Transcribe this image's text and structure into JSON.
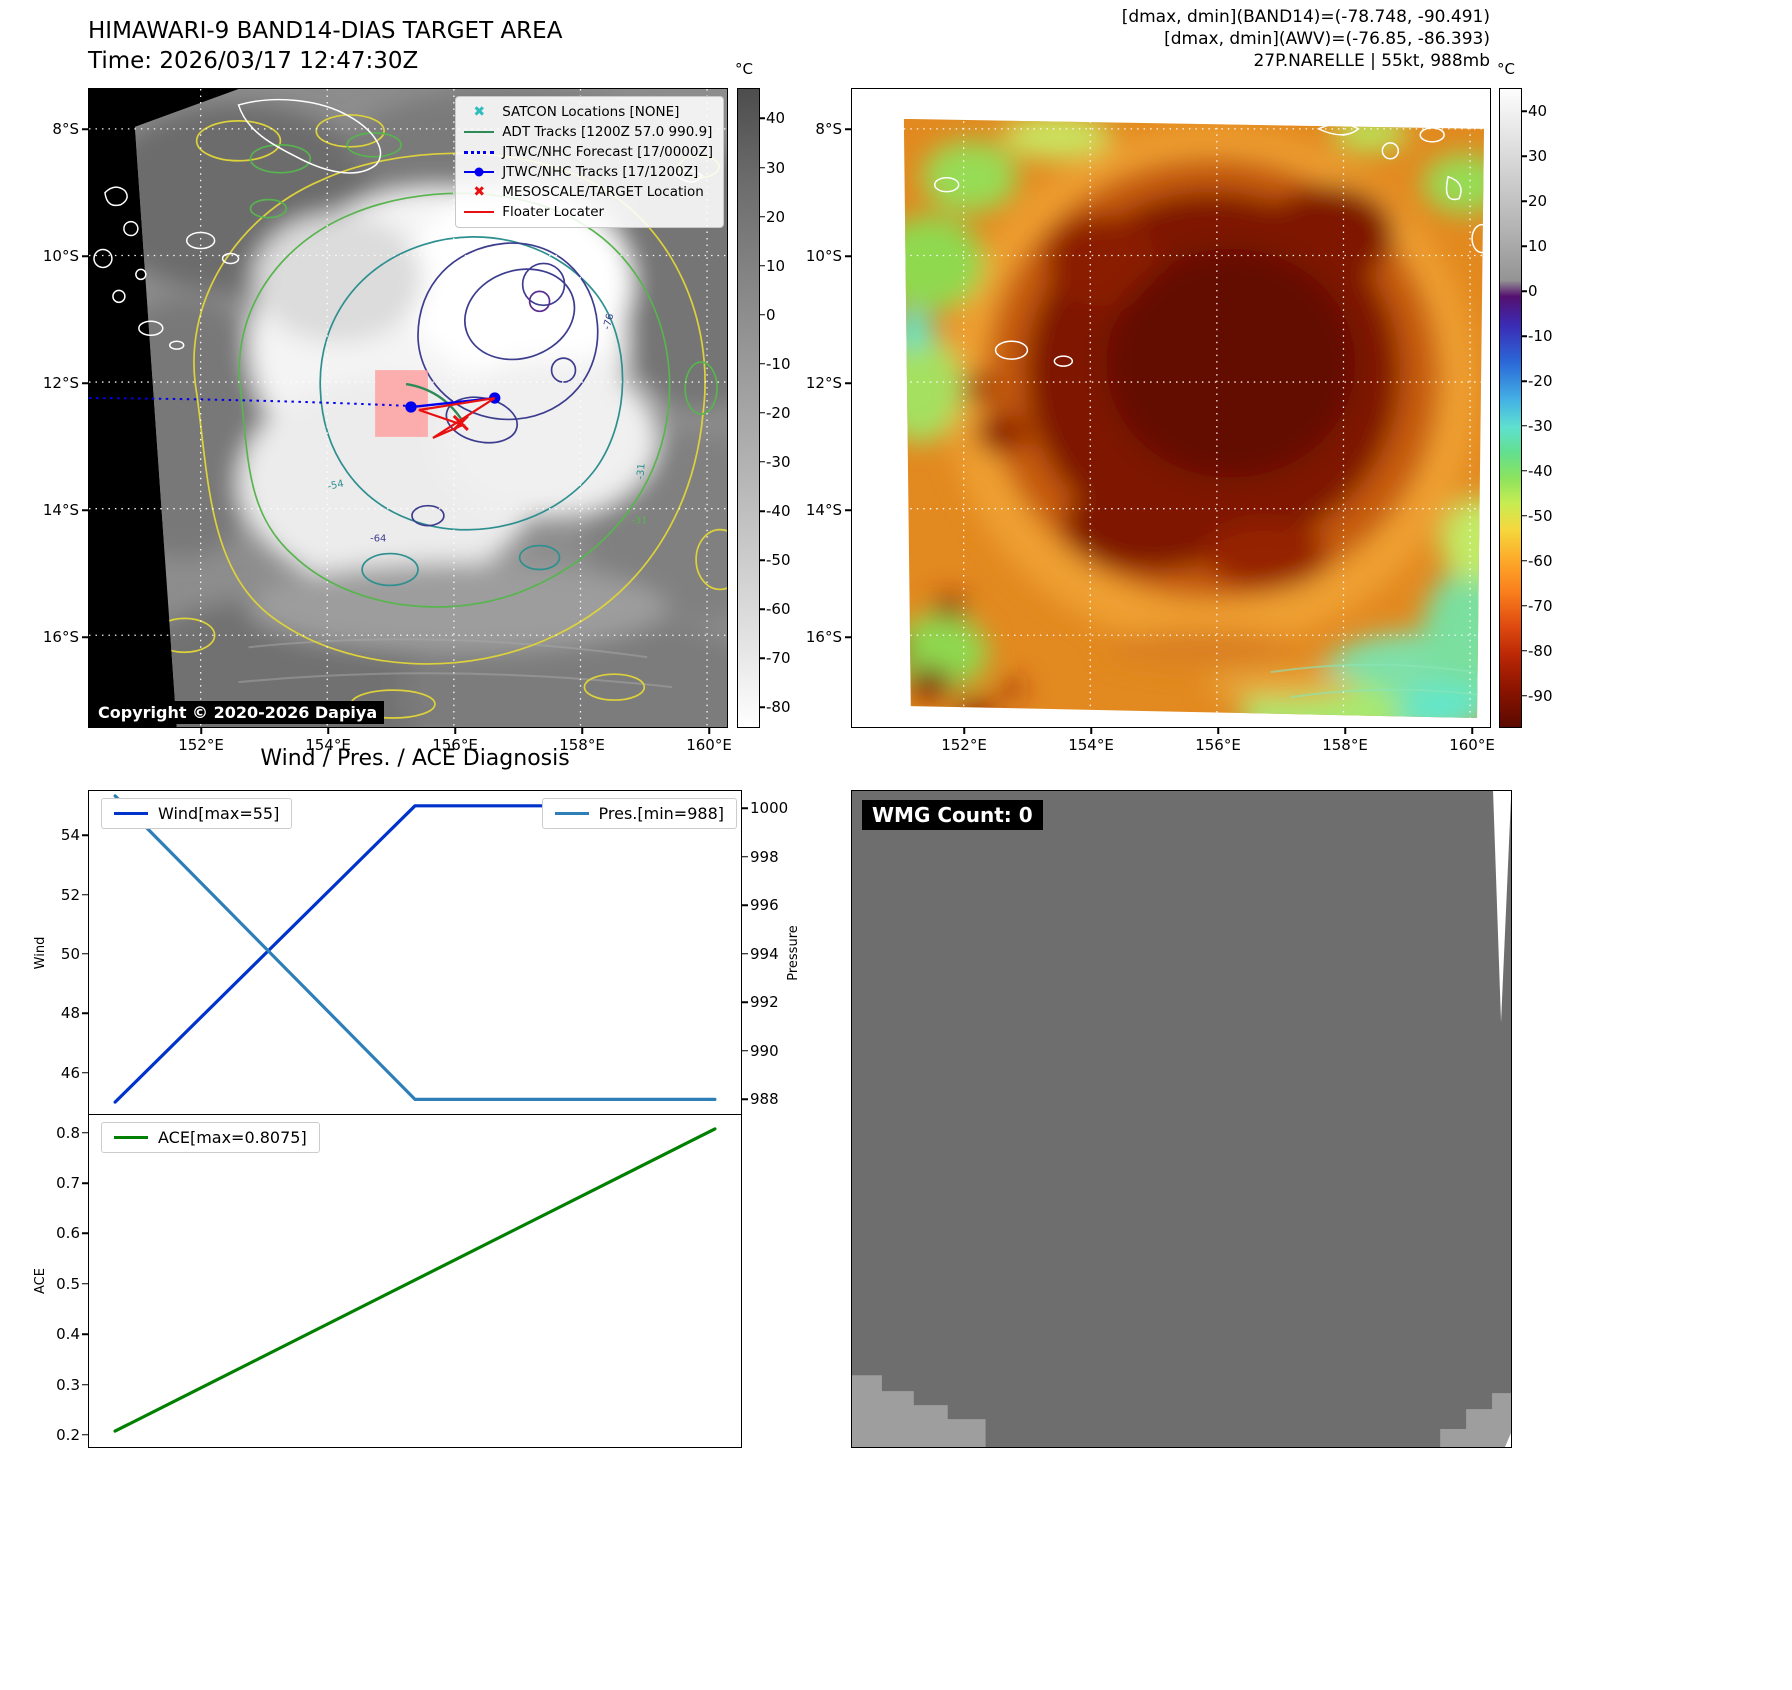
{
  "colors": {
    "wind_line": "#0033cc",
    "pressure_line": "#2e7eb8",
    "ace_line": "#008000",
    "satcon_marker": "#2dbdbd",
    "adt_track": "#2e8b57",
    "jtwc_forecast": "#0000ee",
    "jtwc_track": "#0000ee",
    "mesoscale_marker": "#e81010",
    "floater": "#e81010",
    "target_area_box": "#ff9d9d"
  },
  "band14_panel": {
    "title": "HIMAWARI-9 BAND14-DIAS TARGET AREA",
    "subtitle": "Time: 2026/03/17 12:47:30Z",
    "copyright": "Copyright © 2020-2026 Dapiya",
    "colorbar_unit": "°C",
    "colorbar_ticks": [
      40,
      30,
      20,
      10,
      0,
      -10,
      -20,
      -30,
      -40,
      -50,
      -60,
      -70,
      -80
    ],
    "lat_labels": [
      "8°S",
      "10°S",
      "12°S",
      "14°S",
      "16°S"
    ],
    "lon_labels": [
      "152°E",
      "154°E",
      "156°E",
      "158°E",
      "160°E"
    ],
    "legend": [
      {
        "label": "SATCON Locations [NONE]"
      },
      {
        "label": "ADT Tracks [1200Z 57.0 990.9]"
      },
      {
        "label": "JTWC/NHC Forecast [17/0000Z]"
      },
      {
        "label": "JTWC/NHC Tracks [17/1200Z]"
      },
      {
        "label": "MESOSCALE/TARGET Location"
      },
      {
        "label": "Floater Locater"
      }
    ],
    "contour_labels": [
      "-76",
      "-54",
      "-64",
      "-31",
      "-31"
    ]
  },
  "awv_panel": {
    "header_lines": [
      "[dmax, dmin](BAND14)=(-78.748, -90.491)",
      "[dmax, dmin](AWV)=(-76.85, -86.393)",
      "27P.NARELLE | 55kt, 988mb"
    ],
    "colorbar_unit": "°C",
    "colorbar_ticks": [
      40,
      30,
      20,
      10,
      0,
      -10,
      -20,
      -30,
      -40,
      -50,
      -60,
      -70,
      -80,
      -90
    ],
    "lat_labels": [
      "8°S",
      "10°S",
      "12°S",
      "14°S",
      "16°S"
    ],
    "lon_labels": [
      "152°E",
      "154°E",
      "156°E",
      "158°E",
      "160°E"
    ]
  },
  "diagnosis": {
    "title": "Wind / Pres. / ACE Diagnosis"
  },
  "wmg_panel": {
    "label": "WMG Count: 0"
  },
  "chart_data": [
    {
      "type": "line",
      "title": "Wind / Pres. / ACE Diagnosis",
      "x_axis": {
        "range": [
          0,
          1
        ],
        "tick_labels": []
      },
      "series": [
        {
          "name": "Wind[max=55]",
          "axis": "left",
          "color": "#0033cc",
          "x": [
            0,
            0.5,
            1
          ],
          "values": [
            45.0,
            55.0,
            55.0
          ]
        },
        {
          "name": "Pres.[min=988]",
          "axis": "right",
          "color": "#2e7eb8",
          "x": [
            0,
            0.5,
            1
          ],
          "values": [
            1000.5,
            988.0,
            988.0
          ]
        }
      ],
      "left_axis": {
        "label": "Wind",
        "ticks": [
          54,
          52,
          50,
          48,
          46
        ],
        "range": [
          44.6,
          55.5
        ]
      },
      "right_axis": {
        "label": "Pressure",
        "ticks": [
          1000,
          998,
          996,
          994,
          992,
          990,
          988
        ],
        "range": [
          987.4,
          1000.7
        ]
      },
      "legend_position": "top-left and top-right",
      "grid": false
    },
    {
      "type": "line",
      "series": [
        {
          "name": "ACE[max=0.8075]",
          "axis": "left",
          "color": "#008000",
          "x": [
            0,
            1
          ],
          "values": [
            0.2075,
            0.8075
          ]
        }
      ],
      "left_axis": {
        "label": "ACE",
        "ticks": [
          0.8,
          0.7,
          0.6,
          0.5,
          0.4,
          0.3,
          0.2
        ],
        "range": [
          0.176,
          0.835
        ]
      },
      "legend_position": "top-left",
      "grid": false
    }
  ]
}
